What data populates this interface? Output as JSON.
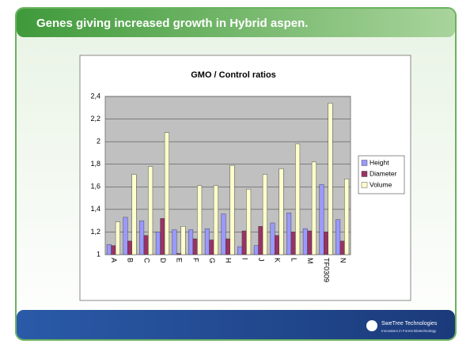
{
  "header": {
    "title": "Genes giving increased growth in Hybrid aspen."
  },
  "footer": {
    "logo": "SweTree Technologies",
    "tagline": "Innovators in Forest Biotechnology"
  },
  "chart_data": {
    "type": "bar",
    "title": "GMO / Control ratios",
    "categories": [
      "A",
      "B",
      "C",
      "D",
      "E",
      "F",
      "G",
      "H",
      "I",
      "J",
      "K",
      "L",
      "M",
      "TF0309",
      "N"
    ],
    "series": [
      {
        "name": "Height",
        "color": "#9999ff",
        "values": [
          1.09,
          1.33,
          1.3,
          1.2,
          1.22,
          1.22,
          1.23,
          1.36,
          1.07,
          1.08,
          1.28,
          1.37,
          1.23,
          1.62,
          1.31
        ]
      },
      {
        "name": "Diameter",
        "color": "#993366",
        "values": [
          1.08,
          1.12,
          1.17,
          1.32,
          1.01,
          1.14,
          1.13,
          1.14,
          1.21,
          1.25,
          1.17,
          1.2,
          1.21,
          1.2,
          1.12
        ]
      },
      {
        "name": "Volume",
        "color": "#ffffcc",
        "values": [
          1.29,
          1.71,
          1.78,
          2.08,
          1.25,
          1.61,
          1.61,
          1.79,
          1.58,
          1.71,
          1.76,
          1.98,
          1.82,
          2.34,
          1.67
        ]
      }
    ],
    "ylim": [
      1,
      2.4
    ],
    "yticks": [
      1,
      {
        "value": 1.2,
        "label": "1,2"
      },
      {
        "value": 1.4,
        "label": "1,4"
      },
      {
        "value": 1.6,
        "label": "1,6"
      },
      {
        "value": 1.8,
        "label": "1,8"
      },
      2,
      {
        "value": 2.2,
        "label": "2,2"
      },
      {
        "value": 2.4,
        "label": "2,4"
      }
    ],
    "grid": true,
    "legend": "right"
  }
}
